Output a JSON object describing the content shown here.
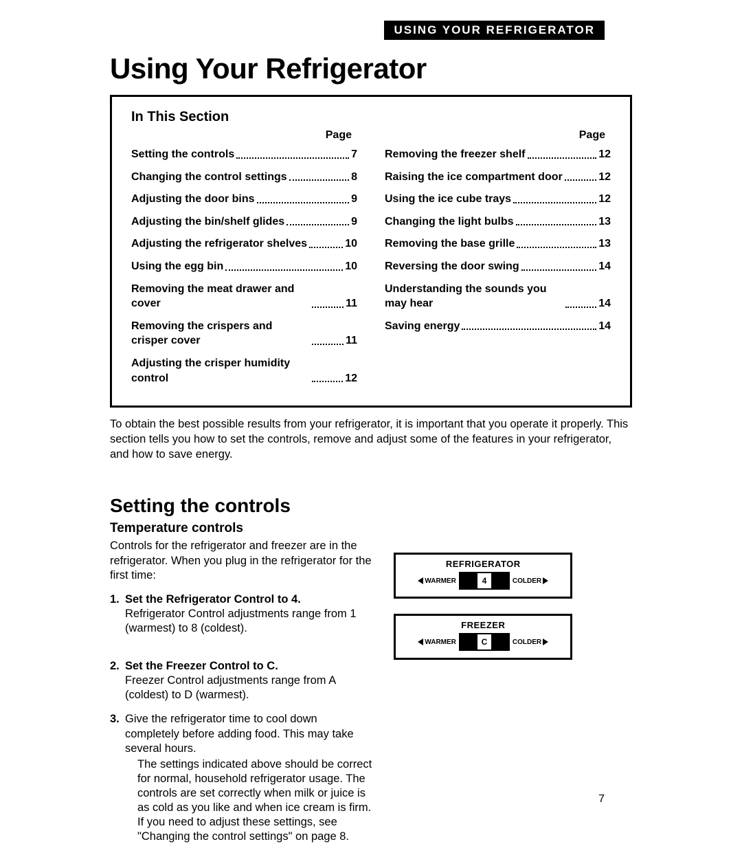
{
  "header_bar": "USING YOUR REFRIGERATOR",
  "main_title": "Using Your Refrigerator",
  "toc": {
    "heading": "In This Section",
    "page_label": "Page",
    "left": [
      {
        "label": "Setting the controls",
        "page": "7"
      },
      {
        "label": "Changing the control settings",
        "page": "8"
      },
      {
        "label": "Adjusting the door bins",
        "page": "9"
      },
      {
        "label": "Adjusting the bin/shelf glides",
        "page": "9"
      },
      {
        "label": "Adjusting the refrigerator shelves",
        "page": "10"
      },
      {
        "label": "Using the egg bin",
        "page": "10"
      },
      {
        "label": "Removing the meat drawer and cover",
        "page": "11"
      },
      {
        "label": "Removing the crispers and crisper cover",
        "page": "11"
      },
      {
        "label": "Adjusting the crisper humidity control",
        "page": "12"
      }
    ],
    "right": [
      {
        "label": "Removing the freezer shelf",
        "page": "12"
      },
      {
        "label": "Raising the ice compartment door",
        "page": "12"
      },
      {
        "label": "Using the ice cube trays",
        "page": "12"
      },
      {
        "label": "Changing the light bulbs",
        "page": "13"
      },
      {
        "label": "Removing the base grille",
        "page": "13"
      },
      {
        "label": "Reversing the door swing",
        "page": "14"
      },
      {
        "label": "Understanding the sounds you may hear",
        "page": "14"
      },
      {
        "label": "Saving energy",
        "page": "14"
      }
    ]
  },
  "intro": "To obtain the best possible results from your refrigerator, it is important that you operate it properly. This section tells you how to set the controls, remove and adjust some of the features in your refrigerator, and how to save energy.",
  "section": {
    "heading": "Setting the controls",
    "subheading": "Temperature controls",
    "lead": "Controls for the refrigerator and freezer are in the refrigerator. When you plug in the refrigerator for the first time:",
    "steps": [
      {
        "num": "1.",
        "title": "Set the Refrigerator Control to 4.",
        "body": "Refrigerator Control adjustments range from 1 (warmest) to 8 (coldest)."
      },
      {
        "num": "2.",
        "title": "Set the Freezer Control to C.",
        "body": "Freezer Control adjustments range from A (coldest) to D (warmest)."
      },
      {
        "num": "3.",
        "title": "",
        "body": "Give the refrigerator time to cool down completely before adding food. This may take several hours."
      }
    ],
    "note": "The settings indicated above should be correct for normal, household refrigerator usage. The controls are set correctly when milk or juice is as cold as you like and when ice cream is firm. If you need to adjust these settings, see \"Changing the control settings\" on page 8."
  },
  "panels": {
    "warmer": "WARMER",
    "colder": "COLDER",
    "fridge": {
      "title": "REFRIGERATOR",
      "value": "4"
    },
    "freezer": {
      "title": "FREEZER",
      "value": "C"
    }
  },
  "page_number": "7"
}
